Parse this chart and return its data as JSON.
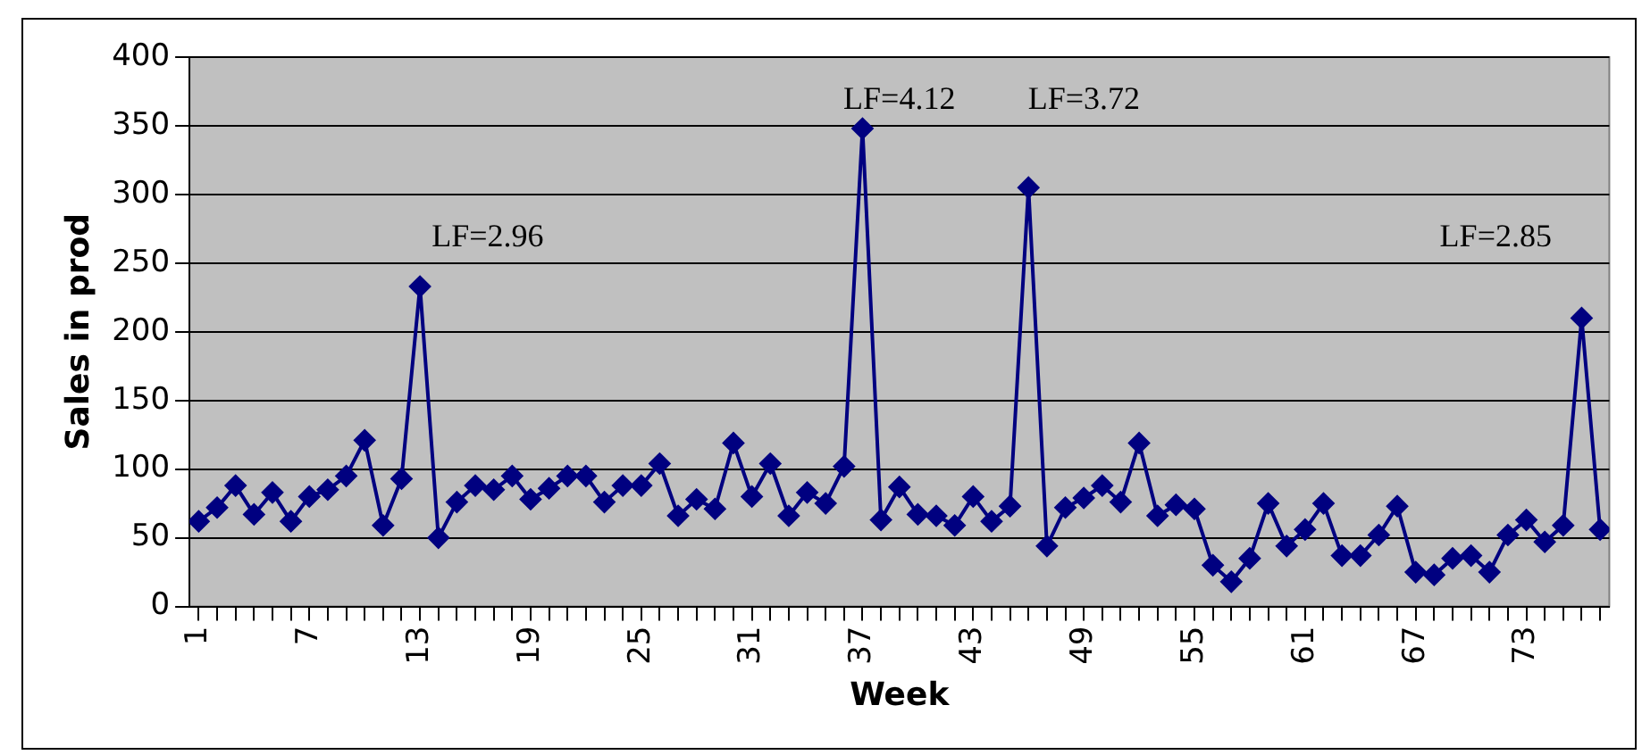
{
  "chart_data": {
    "type": "line",
    "xlabel": "Week",
    "ylabel": "Sales in prod",
    "x": [
      1,
      2,
      3,
      4,
      5,
      6,
      7,
      8,
      9,
      10,
      11,
      12,
      13,
      14,
      15,
      16,
      17,
      18,
      19,
      20,
      21,
      22,
      23,
      24,
      25,
      26,
      27,
      28,
      29,
      30,
      31,
      32,
      33,
      34,
      35,
      36,
      37,
      38,
      39,
      40,
      41,
      42,
      43,
      44,
      45,
      46,
      47,
      48,
      49,
      50,
      51,
      52,
      53,
      54,
      55,
      56,
      57,
      58,
      59,
      60,
      61,
      62,
      63,
      64,
      65,
      66,
      67,
      68,
      69,
      70,
      71,
      72,
      73,
      74,
      75,
      76,
      77
    ],
    "series": [
      {
        "color": "#000080",
        "values": [
          62,
          72,
          88,
          67,
          83,
          62,
          80,
          85,
          95,
          121,
          59,
          93,
          233,
          50,
          76,
          88,
          85,
          95,
          78,
          86,
          95,
          95,
          76,
          88,
          88,
          104,
          66,
          78,
          71,
          119,
          80,
          104,
          66,
          83,
          75,
          102,
          348,
          63,
          87,
          67,
          66,
          59,
          80,
          62,
          73,
          305,
          44,
          72,
          79,
          88,
          76,
          119,
          66,
          74,
          71,
          30,
          18,
          35,
          75,
          44,
          56,
          75,
          37,
          37,
          52,
          73,
          25,
          23,
          35,
          37,
          25,
          52,
          63,
          47,
          59,
          210,
          56
        ]
      }
    ],
    "xlim": [
      0.5,
      77.5
    ],
    "xticks": [
      1,
      {
        "value": 2,
        "label": null
      },
      {
        "value": 3,
        "label": null
      },
      {
        "value": 4,
        "label": null
      },
      {
        "value": 5,
        "label": null
      },
      {
        "value": 6,
        "label": null
      },
      7,
      {
        "value": 8,
        "label": null
      },
      {
        "value": 9,
        "label": null
      },
      {
        "value": 10,
        "label": null
      },
      {
        "value": 11,
        "label": null
      },
      {
        "value": 12,
        "label": null
      },
      13,
      {
        "value": 14,
        "label": null
      },
      {
        "value": 15,
        "label": null
      },
      {
        "value": 16,
        "label": null
      },
      {
        "value": 17,
        "label": null
      },
      {
        "value": 18,
        "label": null
      },
      19,
      {
        "value": 20,
        "label": null
      },
      {
        "value": 21,
        "label": null
      },
      {
        "value": 22,
        "label": null
      },
      {
        "value": 23,
        "label": null
      },
      {
        "value": 24,
        "label": null
      },
      25,
      {
        "value": 26,
        "label": null
      },
      {
        "value": 27,
        "label": null
      },
      {
        "value": 28,
        "label": null
      },
      {
        "value": 29,
        "label": null
      },
      {
        "value": 30,
        "label": null
      },
      31,
      {
        "value": 32,
        "label": null
      },
      {
        "value": 33,
        "label": null
      },
      {
        "value": 34,
        "label": null
      },
      {
        "value": 35,
        "label": null
      },
      {
        "value": 36,
        "label": null
      },
      37,
      {
        "value": 38,
        "label": null
      },
      {
        "value": 39,
        "label": null
      },
      {
        "value": 40,
        "label": null
      },
      {
        "value": 41,
        "label": null
      },
      {
        "value": 42,
        "label": null
      },
      43,
      {
        "value": 44,
        "label": null
      },
      {
        "value": 45,
        "label": null
      },
      {
        "value": 46,
        "label": null
      },
      {
        "value": 47,
        "label": null
      },
      {
        "value": 48,
        "label": null
      },
      49,
      {
        "value": 50,
        "label": null
      },
      {
        "value": 51,
        "label": null
      },
      {
        "value": 52,
        "label": null
      },
      {
        "value": 53,
        "label": null
      },
      {
        "value": 54,
        "label": null
      },
      55,
      {
        "value": 56,
        "label": null
      },
      {
        "value": 57,
        "label": null
      },
      {
        "value": 58,
        "label": null
      },
      {
        "value": 59,
        "label": null
      },
      {
        "value": 60,
        "label": null
      },
      61,
      {
        "value": 62,
        "label": null
      },
      {
        "value": 63,
        "label": null
      },
      {
        "value": 64,
        "label": null
      },
      {
        "value": 65,
        "label": null
      },
      {
        "value": 66,
        "label": null
      },
      67,
      {
        "value": 68,
        "label": null
      },
      {
        "value": 69,
        "label": null
      },
      {
        "value": 70,
        "label": null
      },
      {
        "value": 71,
        "label": null
      },
      {
        "value": 72,
        "label": null
      },
      73,
      {
        "value": 74,
        "label": null
      },
      {
        "value": 75,
        "label": null
      },
      {
        "value": 76,
        "label": null
      },
      {
        "value": 77,
        "label": null
      }
    ],
    "ylim": [
      0,
      400
    ],
    "yticks": [
      0,
      50,
      100,
      150,
      200,
      250,
      300,
      350,
      400
    ],
    "grid": "y",
    "legend": false,
    "marker": "diamond",
    "line_style": "solid",
    "annotations": [
      "LF=2.96",
      "LF=4.12",
      "LF=3.72",
      "LF=2.85"
    ]
  }
}
